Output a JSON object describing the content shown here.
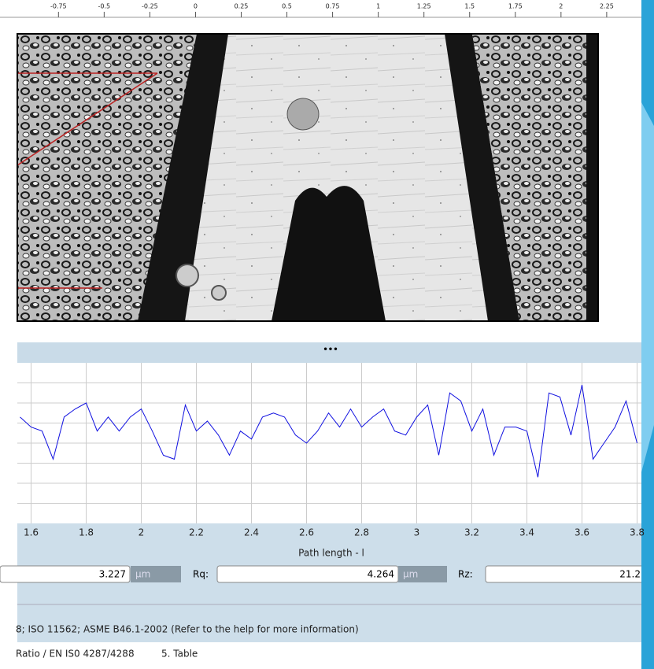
{
  "ruler": {
    "xlim": [
      -1.07,
      2.44
    ],
    "xticks": [
      -0.75,
      -0.5,
      -0.25,
      0,
      0.25,
      0.5,
      0.75,
      1,
      1.25,
      1.5,
      1.75,
      2,
      2.25
    ]
  },
  "separator_label": "•••",
  "profile": {
    "type": "line",
    "color": "#1010e0",
    "xlim": [
      1.55,
      3.83
    ],
    "ylim": [
      0,
      8
    ],
    "xticks": [
      1.6,
      1.8,
      2,
      2.2,
      2.4,
      2.6,
      2.8,
      3,
      3.2,
      3.4,
      3.6,
      3.8
    ],
    "xlabel": "Path length - l",
    "x": [
      1.56,
      1.6,
      1.64,
      1.68,
      1.72,
      1.76,
      1.8,
      1.84,
      1.88,
      1.92,
      1.96,
      2,
      2.04,
      2.08,
      2.12,
      2.16,
      2.2,
      2.24,
      2.28,
      2.32,
      2.36,
      2.4,
      2.44,
      2.48,
      2.52,
      2.56,
      2.6,
      2.64,
      2.68,
      2.72,
      2.76,
      2.8,
      2.84,
      2.88,
      2.92,
      2.96,
      3,
      3.04,
      3.08,
      3.12,
      3.16,
      3.2,
      3.24,
      3.28,
      3.32,
      3.36,
      3.4,
      3.44,
      3.48,
      3.52,
      3.56,
      3.6,
      3.64,
      3.68,
      3.72,
      3.76,
      3.8
    ],
    "values": [
      5.3,
      4.8,
      4.6,
      3.2,
      5.3,
      5.7,
      6.0,
      4.6,
      5.3,
      4.6,
      5.3,
      5.7,
      4.6,
      3.4,
      3.2,
      5.9,
      4.6,
      5.1,
      4.4,
      3.4,
      4.6,
      4.2,
      5.3,
      5.5,
      5.3,
      4.4,
      4.0,
      4.6,
      5.5,
      4.8,
      5.7,
      4.8,
      5.3,
      5.7,
      4.6,
      4.4,
      5.3,
      5.9,
      3.4,
      6.5,
      6.1,
      4.6,
      5.7,
      3.4,
      4.8,
      4.8,
      4.6,
      2.3,
      6.5,
      6.3,
      4.4,
      6.9,
      3.2,
      4.0,
      4.8,
      6.1,
      4.0
    ]
  },
  "parameters": [
    {
      "value": 3.227,
      "unit": "µm"
    },
    {
      "label": "Rq:",
      "value": 4.264,
      "unit": "µm"
    },
    {
      "label": "Rz:",
      "value": 21.2
    }
  ],
  "standards_note": "8; ISO 11562; ASME B46.1-2002 (Refer to the help for more information)",
  "tabs": [
    "Ratio / EN IS0 4287/4288",
    "5. Table"
  ]
}
